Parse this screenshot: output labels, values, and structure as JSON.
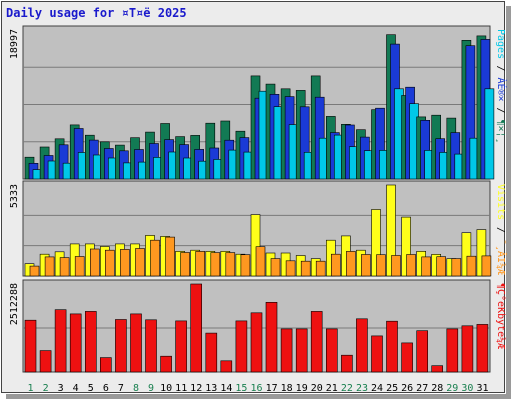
{
  "title": "Daily usage for ¤T¤ë 2025",
  "colors": {
    "pages": "#00c8e8",
    "files": "#1a3ad6",
    "hits": "#127a54",
    "visits": "#ffff1a",
    "sites": "#ff9820",
    "kbytes": "#ee1111",
    "weekend_day": "#1a8050",
    "weekday": "#000000"
  },
  "chart_data": [
    {
      "type": "bar",
      "panel": "top",
      "ymax_label": "18997",
      "right_labels": [
        "Pages",
        "ÀÉ®×",
        "¶×¦¸"
      ],
      "categories": [
        "1",
        "2",
        "3",
        "4",
        "5",
        "6",
        "7",
        "8",
        "9",
        "10",
        "11",
        "12",
        "13",
        "14",
        "15",
        "16",
        "17",
        "18",
        "19",
        "20",
        "21",
        "22",
        "23",
        "24",
        "25",
        "26",
        "27",
        "28",
        "29",
        "30",
        "31"
      ],
      "ylim": [
        0,
        18997
      ],
      "series": [
        {
          "name": "Hits",
          "values": [
            2780,
            4080,
            5120,
            6900,
            5580,
            4740,
            4320,
            5260,
            5980,
            7080,
            5400,
            5560,
            7120,
            7400,
            6100,
            13150,
            12100,
            11500,
            11300,
            13150,
            7980,
            6980,
            6280,
            8830,
            18400,
            10650,
            7920,
            8140,
            7770,
            17680,
            18250
          ]
        },
        {
          "name": "Files",
          "values": [
            2000,
            2990,
            4360,
            6440,
            4960,
            3890,
            3600,
            3760,
            4530,
            5020,
            4380,
            3770,
            3950,
            4950,
            5280,
            10300,
            10800,
            10500,
            9200,
            10430,
            5920,
            6880,
            5340,
            9030,
            17200,
            11700,
            7490,
            5140,
            5920,
            17000,
            17800
          ]
        },
        {
          "name": "Pages",
          "values": [
            1200,
            2300,
            2020,
            3380,
            3060,
            2680,
            2050,
            2160,
            2750,
            3440,
            2680,
            2270,
            2500,
            3680,
            3430,
            11200,
            9220,
            6930,
            3400,
            5200,
            5600,
            4120,
            3610,
            3650,
            11500,
            9600,
            3650,
            3390,
            3180,
            5200,
            11500
          ]
        }
      ]
    },
    {
      "type": "bar",
      "panel": "middle",
      "ymax_label": "5333",
      "right_labels": [
        "Visits",
        "¯¸ÂI¼Æ"
      ],
      "categories": [
        "1",
        "2",
        "3",
        "4",
        "5",
        "6",
        "7",
        "8",
        "9",
        "10",
        "11",
        "12",
        "13",
        "14",
        "15",
        "16",
        "17",
        "18",
        "19",
        "20",
        "21",
        "22",
        "23",
        "24",
        "25",
        "26",
        "27",
        "28",
        "29",
        "30",
        "31"
      ],
      "ylim": [
        0,
        5333
      ],
      "series": [
        {
          "name": "Visits",
          "values": [
            720,
            1280,
            1420,
            1880,
            1880,
            1730,
            1880,
            1880,
            2380,
            2320,
            1450,
            1510,
            1450,
            1450,
            1280,
            3600,
            1350,
            1350,
            1200,
            1020,
            2100,
            2350,
            1510,
            3900,
            5333,
            3450,
            1450,
            1270,
            1020,
            2540,
            2720
          ]
        },
        {
          "name": "Sites",
          "values": [
            580,
            1120,
            1080,
            1140,
            1580,
            1510,
            1560,
            1610,
            2100,
            2280,
            1380,
            1440,
            1370,
            1370,
            1250,
            1720,
            1020,
            890,
            870,
            870,
            1280,
            1440,
            1260,
            1250,
            1200,
            1260,
            1120,
            1130,
            1020,
            1160,
            1180
          ]
        }
      ]
    },
    {
      "type": "bar",
      "panel": "bottom",
      "ymax_label": "2512288",
      "right_labels": [
        "¶Ç°eKbyte¼Æ"
      ],
      "categories": [
        "1",
        "2",
        "3",
        "4",
        "5",
        "6",
        "7",
        "8",
        "9",
        "10",
        "11",
        "12",
        "13",
        "14",
        "15",
        "16",
        "17",
        "18",
        "19",
        "20",
        "21",
        "22",
        "23",
        "24",
        "25",
        "26",
        "27",
        "28",
        "29",
        "30",
        "31"
      ],
      "ylim": [
        0,
        2512288
      ],
      "series": [
        {
          "name": "KBytes",
          "values": [
            1480000,
            610000,
            1780000,
            1660000,
            1730000,
            410000,
            1500000,
            1660000,
            1490000,
            450000,
            1460000,
            2512288,
            1110000,
            320000,
            1460000,
            1690000,
            1990000,
            1230000,
            1230000,
            1730000,
            1230000,
            480000,
            1520000,
            1030000,
            1450000,
            830000,
            1180000,
            180000,
            1230000,
            1320000,
            1360000
          ]
        }
      ]
    }
  ],
  "weekend_days": [
    1,
    2,
    8,
    9,
    15,
    16,
    22,
    23,
    29,
    30
  ]
}
